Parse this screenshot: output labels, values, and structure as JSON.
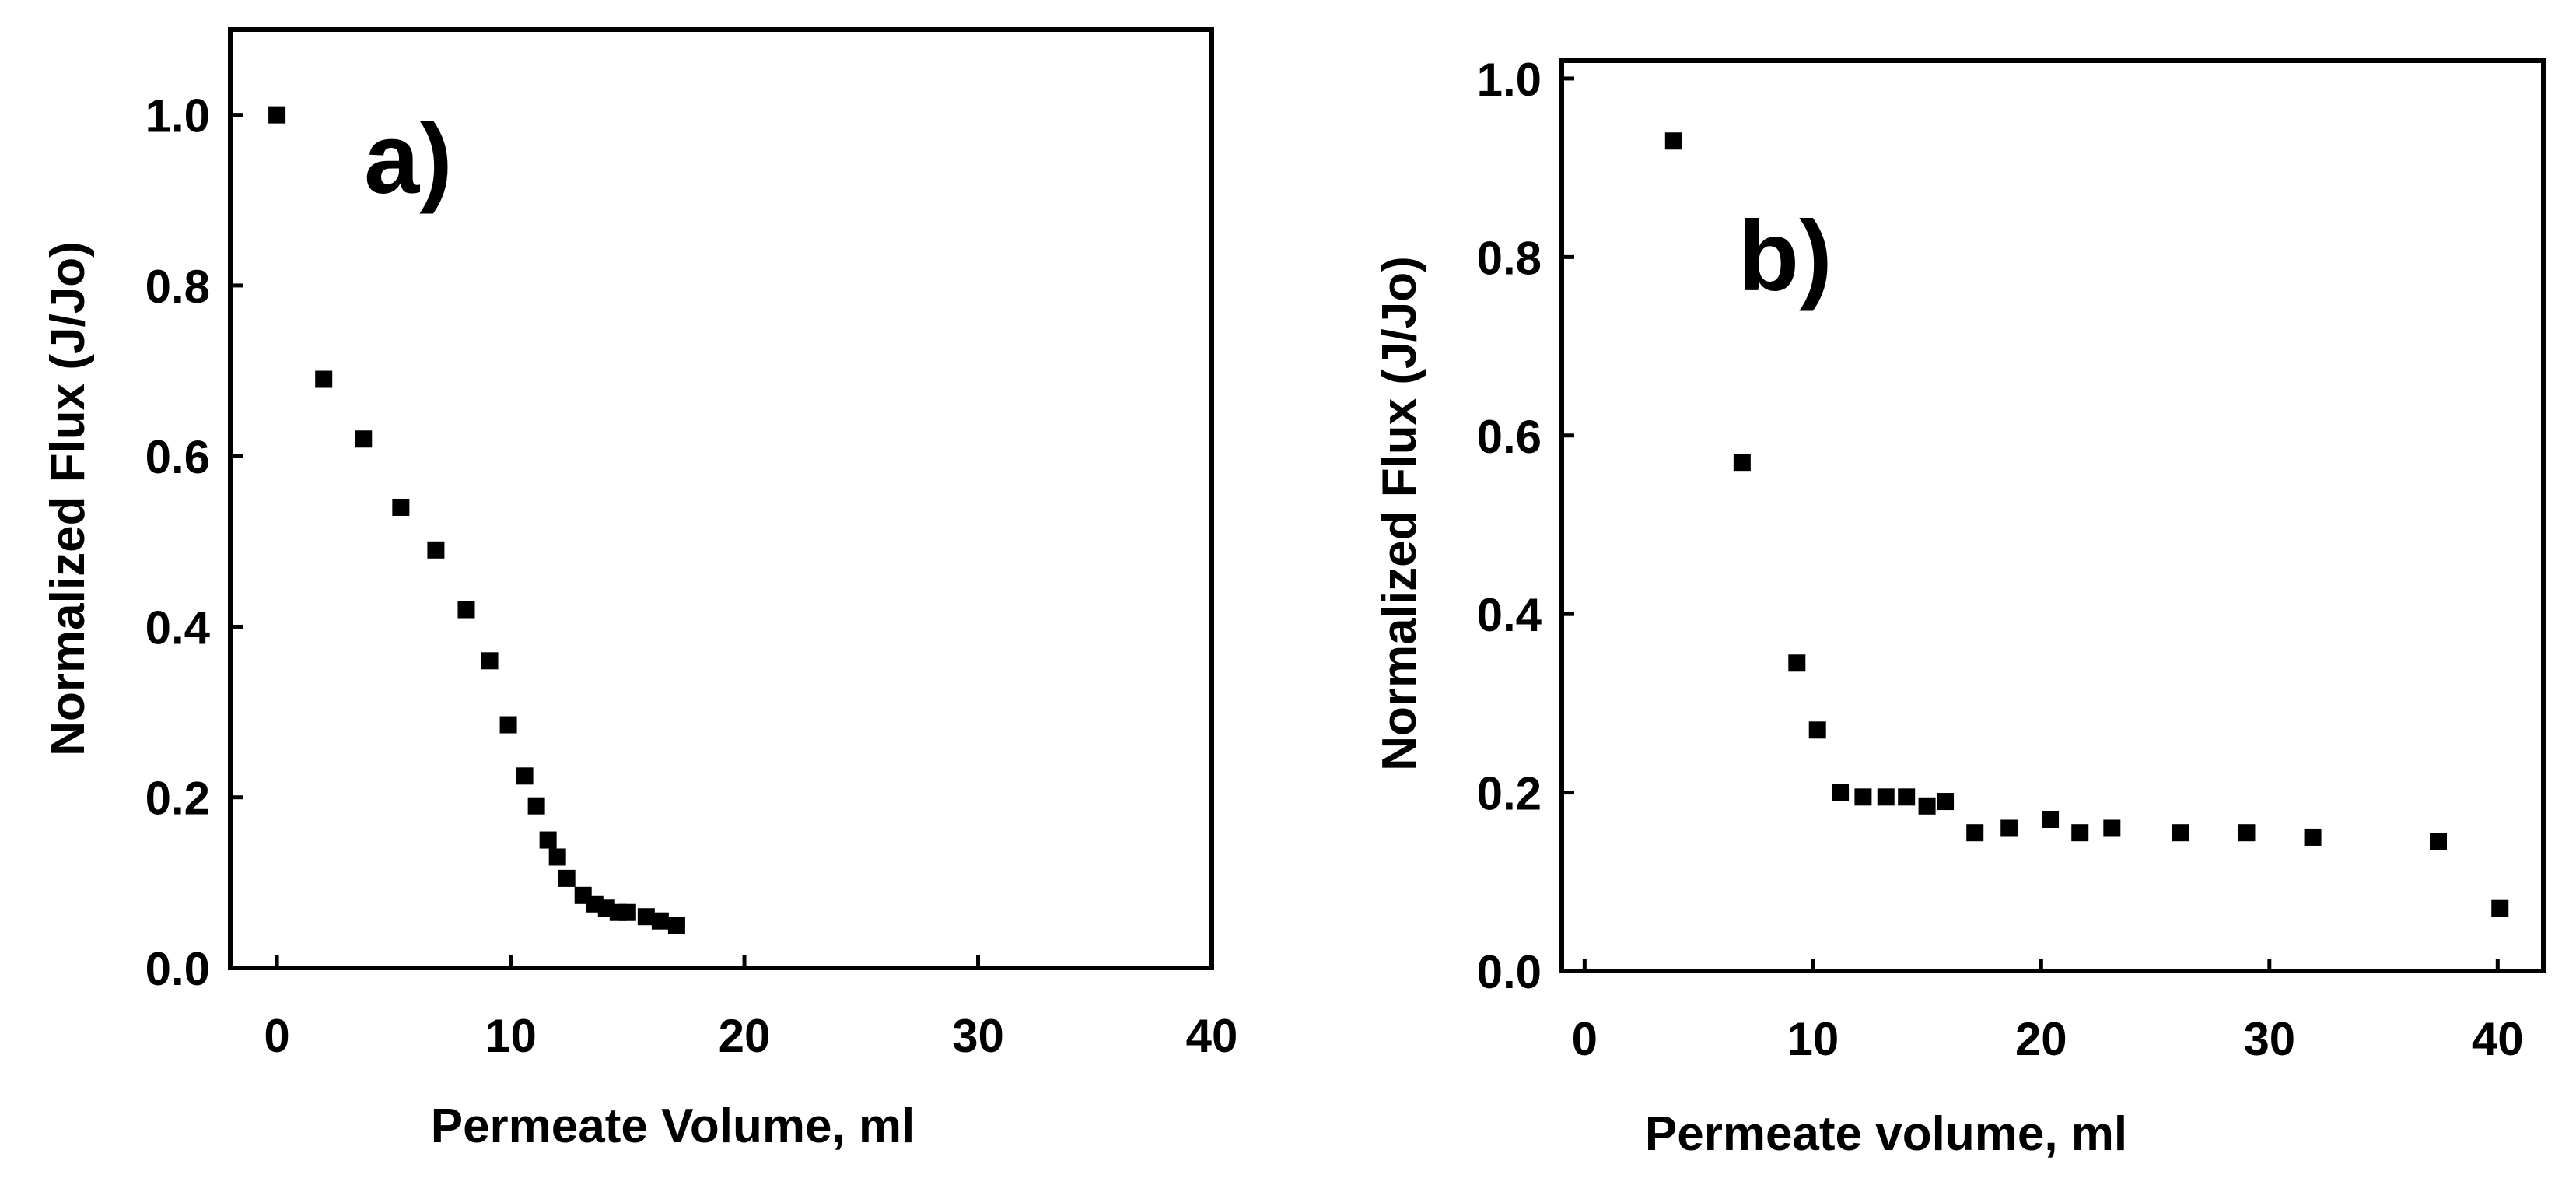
{
  "chart_data": [
    {
      "type": "scatter",
      "panel_label": "a)",
      "xlabel": "Permeate Volume, ml",
      "ylabel": "Normalized Flux (J/Jo)",
      "xlim": [
        -2,
        40
      ],
      "ylim": [
        0,
        1.1
      ],
      "xticks": [
        0,
        10,
        20,
        30,
        40
      ],
      "xtick_labels": [
        "0",
        "10",
        "20",
        "30",
        "40"
      ],
      "yticks": [
        0,
        0.2,
        0.4,
        0.6,
        0.8,
        1.0
      ],
      "ytick_labels": [
        "0.0",
        "0.2",
        "0.4",
        "0.6",
        "0.8",
        "1.0"
      ],
      "grid": false,
      "marker": "square",
      "marker_color": "#000000",
      "series": [
        {
          "x": [
            0,
            2,
            3.7,
            5.3,
            6.8,
            8.1,
            9.1,
            9.9,
            10.6,
            11.1,
            11.6,
            12.0,
            12.4,
            13.1,
            13.6,
            14.1,
            14.6,
            15.0,
            15.8,
            16.4,
            17.1
          ],
          "y": [
            1.0,
            0.69,
            0.62,
            0.54,
            0.49,
            0.42,
            0.36,
            0.285,
            0.225,
            0.19,
            0.15,
            0.13,
            0.105,
            0.085,
            0.075,
            0.07,
            0.065,
            0.065,
            0.06,
            0.055,
            0.05
          ]
        }
      ]
    },
    {
      "type": "scatter",
      "panel_label": "b)",
      "xlabel": "Permeate volume, ml",
      "ylabel": "Normalized Flux (J/Jo)",
      "xlim": [
        -1,
        42
      ],
      "ylim": [
        0,
        1.02
      ],
      "xticks": [
        0,
        10,
        20,
        30,
        40
      ],
      "xtick_labels": [
        "0",
        "10",
        "20",
        "30",
        "40"
      ],
      "yticks": [
        0,
        0.2,
        0.4,
        0.6,
        0.8,
        1.0
      ],
      "ytick_labels": [
        "0.0",
        "0.2",
        "0.4",
        "0.6",
        "0.8",
        "1.0"
      ],
      "grid": false,
      "marker": "square",
      "marker_color": "#000000",
      "series": [
        {
          "x": [
            3.9,
            6.9,
            9.3,
            10.2,
            11.2,
            12.2,
            13.2,
            14.1,
            15.0,
            15.8,
            17.1,
            18.6,
            20.4,
            21.7,
            23.1,
            26.1,
            29.0,
            31.9,
            37.4,
            40.1
          ],
          "y": [
            0.93,
            0.57,
            0.345,
            0.27,
            0.2,
            0.195,
            0.195,
            0.195,
            0.185,
            0.19,
            0.155,
            0.16,
            0.17,
            0.155,
            0.16,
            0.155,
            0.155,
            0.15,
            0.145,
            0.07
          ]
        }
      ]
    }
  ]
}
